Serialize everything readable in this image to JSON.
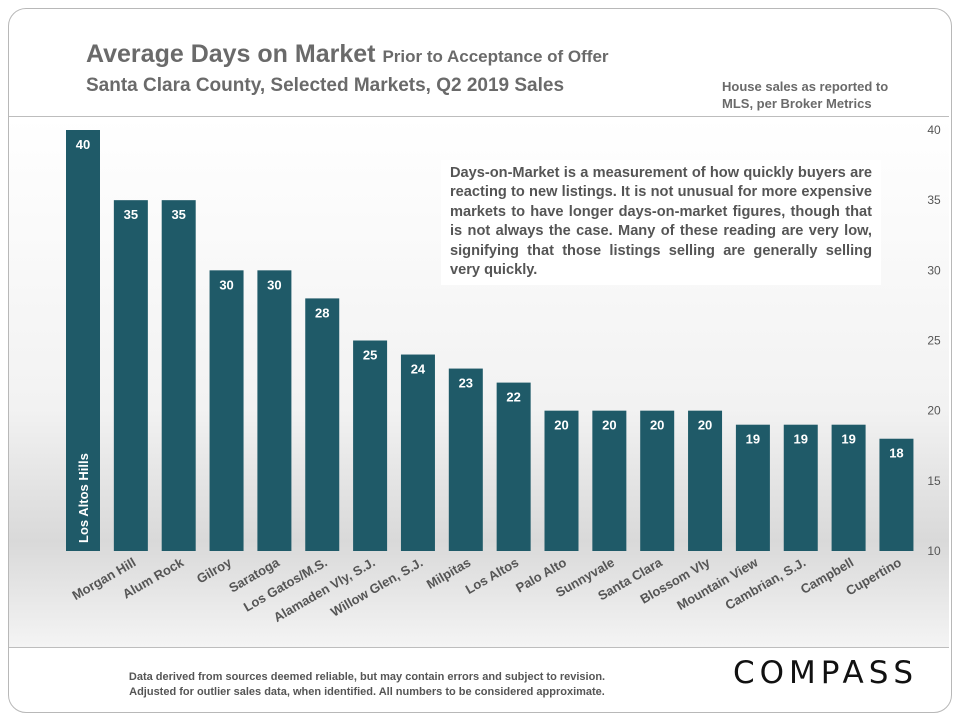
{
  "header": {
    "title": "Average Days on Market",
    "title_suffix": "Prior to Acceptance of Offer",
    "subtitle": "Santa Clara County, Selected Markets, Q2 2019 Sales",
    "source_note": "House sales as reported to MLS, per Broker Metrics"
  },
  "callout": {
    "text": "Days-on-Market is a measurement of how quickly buyers are reacting to new listings. It is not unusual for more expensive markets to have longer days-on-market figures, though that is not always the case. Many of these reading are very low, signifying that those listings selling are generally selling very quickly."
  },
  "footer": {
    "line1": "Data derived from sources deemed reliable, but may contain errors and subject to revision.",
    "line2": "Adjusted for outlier sales data, when identified. All numbers to be considered approximate."
  },
  "logo": {
    "text": "COMPASS"
  },
  "chart_data": {
    "type": "bar",
    "title": "Average Days on Market",
    "categories": [
      "Los Altos Hills",
      "Morgan Hill",
      "Alum Rock",
      "Gilroy",
      "Saratoga",
      "Los Gatos/M.S.",
      "Alamaden Vly, S.J.",
      "Willow Glen, S.J.",
      "Milpitas",
      "Los Altos",
      "Palo Alto",
      "Sunnyvale",
      "Santa Clara",
      "Blossom Vly",
      "Mountain View",
      "Cambrian, S.J.",
      "Campbell",
      "Cupertino"
    ],
    "values": [
      40,
      35,
      35,
      30,
      30,
      28,
      25,
      24,
      23,
      22,
      20,
      20,
      20,
      20,
      19,
      19,
      19,
      18
    ],
    "ylim": [
      10,
      40
    ],
    "yticks": [
      10,
      15,
      20,
      25,
      30,
      35,
      40
    ],
    "xlabel": "",
    "ylabel": "",
    "bar_color": "#1f5a68",
    "label_color": "#ffffff",
    "tick_color": "#555555"
  }
}
